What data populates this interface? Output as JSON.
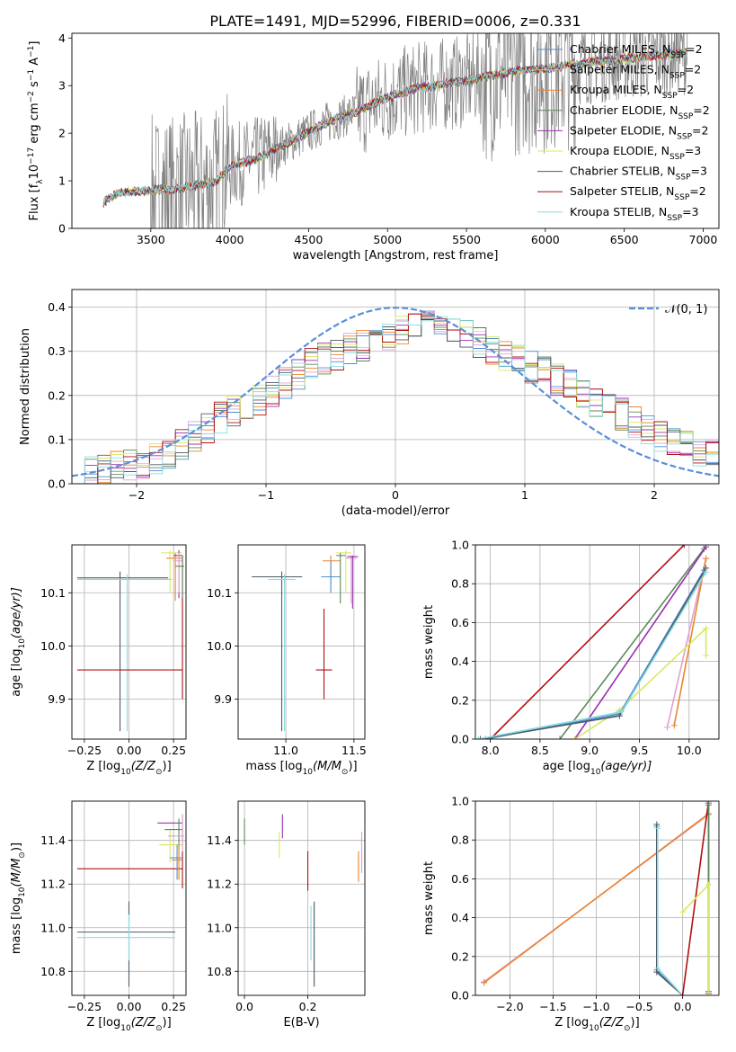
{
  "figure_title": "PLATE=1491, MJD=52996, FIBERID=0006, z=0.331",
  "models": [
    {
      "name": "Chabrier MILES, N",
      "nssp": "=2",
      "color": "#4f8fd8"
    },
    {
      "name": "Salpeter MILES, N",
      "nssp": "=2",
      "color": "#e0a0d0"
    },
    {
      "name": "Kroupa MILES, N",
      "nssp": "=2",
      "color": "#e8862e"
    },
    {
      "name": "Chabrier ELODIE, N",
      "nssp": "=2",
      "color": "#5a8a5a"
    },
    {
      "name": "Salpeter ELODIE, N",
      "nssp": "=2",
      "color": "#9a30b0"
    },
    {
      "name": "Kroupa ELODIE, N",
      "nssp": "=3",
      "color": "#d8e860"
    },
    {
      "name": "Chabrier STELIB, N",
      "nssp": "=3",
      "color": "#505a66"
    },
    {
      "name": "Salpeter STELIB, N",
      "nssp": "=2",
      "color": "#b01010"
    },
    {
      "name": "Kroupa STELIB, N",
      "nssp": "=3",
      "color": "#88dde0"
    }
  ],
  "ssp_subscript": "SSP",
  "data_color": "#808080",
  "chart_data": [
    {
      "id": "spectrum",
      "type": "line",
      "xlabel": "wavelength [Angstrom, rest frame]",
      "ylabel": "Flux [f",
      "ylabel_sub": "λ",
      "ylabel_rest": "10",
      "ylabel_exp": "−17",
      "ylabel_unit": " erg cm",
      "ylabel_exp2": "−2",
      "ylabel_unit2": " s",
      "ylabel_exp3": "−1",
      "ylabel_unit3": " A",
      "ylabel_exp4": "−1",
      "ylabel_end": "]",
      "xlim": [
        3000,
        7100
      ],
      "ylim": [
        0,
        4.1
      ],
      "xticks": [
        3500,
        4000,
        4500,
        5000,
        5500,
        6000,
        6500,
        7000
      ],
      "yticks": [
        0,
        1,
        2,
        3,
        4
      ],
      "continuum": [
        [
          3200,
          0.55
        ],
        [
          3300,
          0.75
        ],
        [
          3500,
          0.8
        ],
        [
          3700,
          0.85
        ],
        [
          3900,
          0.95
        ],
        [
          4000,
          1.3
        ],
        [
          4200,
          1.5
        ],
        [
          4400,
          1.85
        ],
        [
          4600,
          2.2
        ],
        [
          4800,
          2.45
        ],
        [
          5000,
          2.75
        ],
        [
          5200,
          2.95
        ],
        [
          5500,
          3.1
        ],
        [
          5800,
          3.3
        ],
        [
          6000,
          3.35
        ],
        [
          6300,
          3.5
        ],
        [
          6600,
          3.6
        ],
        [
          6900,
          3.7
        ]
      ]
    },
    {
      "id": "residuals",
      "type": "histogram",
      "xlabel": "(data-model)/error",
      "ylabel": "Normed distribution",
      "xlim": [
        -2.5,
        2.5
      ],
      "ylim": [
        0,
        0.44
      ],
      "xticks": [
        -2,
        -1,
        0,
        1,
        2
      ],
      "xticklabels": [
        "−2",
        "−1",
        "0",
        "1",
        "2"
      ],
      "yticks": [
        0.0,
        0.1,
        0.2,
        0.3,
        0.4
      ],
      "yticklabels": [
        "0.0",
        "0.1",
        "0.2",
        "0.3",
        "0.4"
      ],
      "legend": "𝒩(0, 1)",
      "gaussian_color": "#5b8fd8",
      "bin_width": 0.1,
      "envelope": [
        [
          -2.5,
          0.025
        ],
        [
          -2.2,
          0.035
        ],
        [
          -2.0,
          0.045
        ],
        [
          -1.8,
          0.06
        ],
        [
          -1.6,
          0.1
        ],
        [
          -1.4,
          0.14
        ],
        [
          -1.2,
          0.17
        ],
        [
          -1.0,
          0.2
        ],
        [
          -0.8,
          0.24
        ],
        [
          -0.6,
          0.28
        ],
        [
          -0.4,
          0.3
        ],
        [
          -0.2,
          0.32
        ],
        [
          0.0,
          0.34
        ],
        [
          0.2,
          0.355
        ],
        [
          0.4,
          0.36
        ],
        [
          0.6,
          0.33
        ],
        [
          0.8,
          0.3
        ],
        [
          1.0,
          0.27
        ],
        [
          1.2,
          0.245
        ],
        [
          1.4,
          0.215
        ],
        [
          1.6,
          0.175
        ],
        [
          1.8,
          0.15
        ],
        [
          2.0,
          0.11
        ],
        [
          2.2,
          0.09
        ],
        [
          2.4,
          0.065
        ],
        [
          2.5,
          0.06
        ]
      ]
    },
    {
      "id": "age-vs-Z",
      "type": "errorbar",
      "xlabel": "Z [log",
      "xlabel_sub": "10",
      "xlabel_rest": "(Z/Z",
      "xlabel_sub2": "⊙",
      "xlabel_end": ")]",
      "ylabel": "age  [log",
      "ylabel_sub": "10",
      "ylabel_rest": "(age/yr)]",
      "xlim": [
        -0.32,
        0.32
      ],
      "ylim": [
        9.825,
        10.19
      ],
      "xticks": [
        -0.25,
        0.0,
        0.25
      ],
      "xticklabels": [
        "−0.25",
        "0.00",
        "0.25"
      ],
      "yticks": [
        9.9,
        10.0,
        10.1
      ],
      "yticklabels": [
        "9.9",
        "10.0",
        "10.1"
      ],
      "points": [
        {
          "m": 6,
          "x": -0.05,
          "xlo": -0.29,
          "xhi": 0.22,
          "y": 10.128,
          "ylo": 9.84,
          "yhi": 10.14
        },
        {
          "m": 8,
          "x": -0.01,
          "xlo": -0.29,
          "xhi": 0.24,
          "y": 10.125,
          "ylo": 9.84,
          "yhi": 10.135
        },
        {
          "m": 7,
          "x": 0.3,
          "xlo": -0.29,
          "xhi": 0.3,
          "y": 9.955,
          "ylo": 9.9,
          "yhi": 10.17
        },
        {
          "m": 5,
          "x": 0.23,
          "xlo": 0.18,
          "xhi": 0.3,
          "y": 10.175,
          "ylo": 10.1,
          "yhi": 10.18
        },
        {
          "m": 2,
          "x": 0.26,
          "xlo": 0.21,
          "xhi": 0.3,
          "y": 10.165,
          "ylo": 10.085,
          "yhi": 10.175
        },
        {
          "m": 4,
          "x": 0.28,
          "xlo": 0.25,
          "xhi": 0.3,
          "y": 10.17,
          "ylo": 10.09,
          "yhi": 10.18
        },
        {
          "m": 1,
          "x": 0.28,
          "xlo": 0.25,
          "xhi": 0.3,
          "y": 10.16,
          "ylo": 10.1,
          "yhi": 10.175
        },
        {
          "m": 3,
          "x": 0.3,
          "xlo": 0.26,
          "xhi": 0.31,
          "y": 10.15,
          "ylo": 10.09,
          "yhi": 10.17
        }
      ]
    },
    {
      "id": "age-vs-mass",
      "type": "errorbar",
      "xlabel": "mass [log",
      "xlabel_sub": "10",
      "xlabel_rest": "(M/M",
      "xlabel_sub2": "⊙",
      "xlabel_end": ")]",
      "xlim": [
        10.65,
        11.58
      ],
      "ylim": [
        9.825,
        10.19
      ],
      "xticks": [
        11.0,
        11.5
      ],
      "xticklabels": [
        "11.0",
        "11.5"
      ],
      "yticks": [
        9.9,
        10.0,
        10.1
      ],
      "yticklabels": [
        "9.9",
        "10.0",
        "10.1"
      ],
      "points": [
        {
          "m": 6,
          "x": 10.97,
          "xlo": 10.75,
          "xhi": 11.12,
          "y": 10.13,
          "ylo": 9.84,
          "yhi": 10.14
        },
        {
          "m": 8,
          "x": 10.99,
          "xlo": 10.87,
          "xhi": 11.07,
          "y": 10.125,
          "ylo": 9.84,
          "yhi": 10.135
        },
        {
          "m": 7,
          "x": 11.28,
          "xlo": 11.22,
          "xhi": 11.34,
          "y": 9.955,
          "ylo": 9.9,
          "yhi": 10.07
        },
        {
          "m": 2,
          "x": 11.33,
          "xlo": 11.27,
          "xhi": 11.4,
          "y": 10.16,
          "ylo": 10.12,
          "yhi": 10.17
        },
        {
          "m": 0,
          "x": 11.33,
          "xlo": 11.26,
          "xhi": 11.4,
          "y": 10.13,
          "ylo": 10.1,
          "yhi": 10.16
        },
        {
          "m": 5,
          "x": 11.44,
          "xlo": 11.37,
          "xhi": 11.48,
          "y": 10.175,
          "ylo": 10.1,
          "yhi": 10.18
        },
        {
          "m": 3,
          "x": 11.4,
          "xlo": 11.37,
          "xhi": 11.44,
          "y": 10.17,
          "ylo": 10.08,
          "yhi": 10.175
        },
        {
          "m": 1,
          "x": 11.48,
          "xlo": 11.44,
          "xhi": 11.52,
          "y": 10.165,
          "ylo": 10.08,
          "yhi": 10.17
        },
        {
          "m": 4,
          "x": 11.49,
          "xlo": 11.45,
          "xhi": 11.53,
          "y": 10.168,
          "ylo": 10.07,
          "yhi": 10.17
        }
      ]
    },
    {
      "id": "massweight-vs-age",
      "type": "line",
      "xlabel": "age  [log",
      "xlabel_sub": "10",
      "xlabel_rest": "(age/yr)]",
      "ylabel": "mass weight",
      "xlim": [
        7.85,
        10.3
      ],
      "ylim": [
        0,
        1.0
      ],
      "xticks": [
        8.0,
        8.5,
        9.0,
        9.5,
        10.0
      ],
      "xticklabels": [
        "8.0",
        "8.5",
        "9.0",
        "9.5",
        "10.0"
      ],
      "yticks": [
        0.0,
        0.2,
        0.4,
        0.6,
        0.8,
        1.0
      ],
      "yticklabels": [
        "0.0",
        "0.2",
        "0.4",
        "0.6",
        "0.8",
        "1.0"
      ],
      "series": [
        {
          "m": 7,
          "points": [
            [
              8.0,
              0.0
            ],
            [
              9.95,
              1.0
            ]
          ]
        },
        {
          "m": 3,
          "points": [
            [
              8.7,
              0.0
            ],
            [
              10.15,
              0.98
            ]
          ]
        },
        {
          "m": 4,
          "points": [
            [
              8.85,
              0.0
            ],
            [
              10.17,
              0.99
            ]
          ]
        },
        {
          "m": 1,
          "points": [
            [
              9.78,
              0.06
            ],
            [
              10.17,
              0.93
            ]
          ]
        },
        {
          "m": 2,
          "points": [
            [
              9.85,
              0.07
            ],
            [
              10.17,
              0.93
            ]
          ]
        },
        {
          "m": 5,
          "points": [
            [
              8.85,
              0.0
            ],
            [
              9.3,
              0.15
            ],
            [
              10.17,
              0.57
            ],
            [
              10.17,
              0.43
            ]
          ]
        },
        {
          "m": 0,
          "points": [
            [
              7.95,
              0.0
            ],
            [
              9.3,
              0.13
            ],
            [
              10.15,
              0.87
            ]
          ]
        },
        {
          "m": 6,
          "points": [
            [
              7.9,
              0.0
            ],
            [
              9.3,
              0.12
            ],
            [
              10.17,
              0.88
            ]
          ]
        },
        {
          "m": 8,
          "points": [
            [
              7.88,
              0.0
            ],
            [
              9.32,
              0.14
            ],
            [
              10.17,
              0.86
            ]
          ]
        }
      ]
    },
    {
      "id": "mass-vs-Z",
      "type": "errorbar",
      "xlabel": "Z [log",
      "xlabel_sub": "10",
      "xlabel_rest": "(Z/Z",
      "xlabel_sub2": "⊙",
      "xlabel_end": ")]",
      "ylabel": "mass [log",
      "ylabel_sub": "10",
      "ylabel_rest": "(M/M",
      "ylabel_sub2": "⊙",
      "ylabel_end": ")]",
      "xlim": [
        -0.32,
        0.32
      ],
      "ylim": [
        10.69,
        11.58
      ],
      "xticks": [
        -0.25,
        0.0,
        0.25
      ],
      "xticklabels": [
        "−0.25",
        "0.00",
        "0.25"
      ],
      "yticks": [
        10.8,
        11.0,
        11.2,
        11.4
      ],
      "yticklabels": [
        "10.8",
        "11.0",
        "11.2",
        "11.4"
      ],
      "points": [
        {
          "m": 6,
          "x": 0.0,
          "xlo": -0.29,
          "xhi": 0.26,
          "y": 10.98,
          "ylo": 10.73,
          "yhi": 11.12
        },
        {
          "m": 8,
          "x": 0.0,
          "xlo": -0.29,
          "xhi": 0.26,
          "y": 10.955,
          "ylo": 10.85,
          "yhi": 11.06
        },
        {
          "m": 7,
          "x": 0.3,
          "xlo": -0.29,
          "xhi": 0.3,
          "y": 11.27,
          "ylo": 11.18,
          "yhi": 11.35
        },
        {
          "m": 5,
          "x": 0.23,
          "xlo": 0.17,
          "xhi": 0.3,
          "y": 11.38,
          "ylo": 11.3,
          "yhi": 11.45
        },
        {
          "m": 4,
          "x": 0.3,
          "xlo": 0.16,
          "xhi": 0.3,
          "y": 11.48,
          "ylo": 11.38,
          "yhi": 11.52
        },
        {
          "m": 3,
          "x": 0.28,
          "xlo": 0.2,
          "xhi": 0.3,
          "y": 11.45,
          "ylo": 11.35,
          "yhi": 11.5
        },
        {
          "m": 1,
          "x": 0.3,
          "xlo": 0.22,
          "xhi": 0.31,
          "y": 11.42,
          "ylo": 11.35,
          "yhi": 11.52
        },
        {
          "m": 0,
          "x": 0.27,
          "xlo": 0.23,
          "xhi": 0.3,
          "y": 11.32,
          "ylo": 11.22,
          "yhi": 11.38
        },
        {
          "m": 2,
          "x": 0.28,
          "xlo": 0.24,
          "xhi": 0.3,
          "y": 11.31,
          "ylo": 11.22,
          "yhi": 11.38
        }
      ]
    },
    {
      "id": "mass-vs-EBV",
      "type": "errorbar",
      "xlabel": "E(B-V)",
      "xlim": [
        -0.02,
        0.38
      ],
      "ylim": [
        10.69,
        11.58
      ],
      "xticks": [
        0.0,
        0.2
      ],
      "xticklabels": [
        "0.0",
        "0.2"
      ],
      "yticks": [
        10.8,
        11.0,
        11.2,
        11.4
      ],
      "yticklabels": [
        "10.8",
        "11.0",
        "11.2",
        "11.4"
      ],
      "points": [
        {
          "m": 3,
          "x": 0.0,
          "y": 11.42,
          "ylo": 11.38,
          "yhi": 11.5
        },
        {
          "m": 5,
          "x": 0.11,
          "y": 11.36,
          "ylo": 11.32,
          "yhi": 11.44
        },
        {
          "m": 4,
          "x": 0.12,
          "y": 11.46,
          "ylo": 11.41,
          "yhi": 11.52
        },
        {
          "m": 7,
          "x": 0.2,
          "y": 11.27,
          "ylo": 11.17,
          "yhi": 11.35
        },
        {
          "m": 8,
          "x": 0.21,
          "y": 10.95,
          "ylo": 10.85,
          "yhi": 11.1
        },
        {
          "m": 6,
          "x": 0.22,
          "y": 10.98,
          "ylo": 10.73,
          "yhi": 11.12
        },
        {
          "m": 5,
          "x": 0.36,
          "y": 11.3,
          "ylo": 11.22,
          "yhi": 11.35
        },
        {
          "m": 2,
          "x": 0.36,
          "y": 11.3,
          "ylo": 11.21,
          "yhi": 11.35
        },
        {
          "m": 1,
          "x": 0.37,
          "y": 11.35,
          "ylo": 11.25,
          "yhi": 11.44
        }
      ]
    },
    {
      "id": "massweight-vs-Z",
      "type": "line",
      "xlabel": "Z [log",
      "xlabel_sub": "10",
      "xlabel_rest": "(Z/Z",
      "xlabel_sub2": "⊙",
      "xlabel_end": ")]",
      "ylabel": "mass weight",
      "xlim": [
        -2.4,
        0.42
      ],
      "ylim": [
        0,
        1.0
      ],
      "xticks": [
        -2.0,
        -1.5,
        -1.0,
        -0.5,
        0.0
      ],
      "xticklabels": [
        "−2.0",
        "−1.5",
        "−1.0",
        "−0.5",
        "0.0"
      ],
      "yticks": [
        0.0,
        0.2,
        0.4,
        0.6,
        0.8,
        1.0
      ],
      "yticklabels": [
        "0.0",
        "0.2",
        "0.4",
        "0.6",
        "0.8",
        "1.0"
      ],
      "series": [
        {
          "m": 1,
          "points": [
            [
              -2.3,
              0.07
            ],
            [
              0.3,
              0.93
            ]
          ]
        },
        {
          "m": 2,
          "points": [
            [
              -2.3,
              0.065
            ],
            [
              0.3,
              0.935
            ]
          ]
        },
        {
          "m": 0,
          "points": [
            [
              -0.3,
              0.87
            ],
            [
              -0.3,
              0.13
            ],
            [
              0.0,
              0.0
            ]
          ]
        },
        {
          "m": 6,
          "points": [
            [
              -0.3,
              0.88
            ],
            [
              -0.3,
              0.12
            ],
            [
              0.0,
              0.0
            ]
          ]
        },
        {
          "m": 8,
          "points": [
            [
              -0.29,
              0.86
            ],
            [
              -0.29,
              0.14
            ],
            [
              0.0,
              0.0
            ]
          ]
        },
        {
          "m": 7,
          "points": [
            [
              0.0,
              0.0
            ],
            [
              0.3,
              1.0
            ]
          ]
        },
        {
          "m": 4,
          "points": [
            [
              0.3,
              0.99
            ],
            [
              0.3,
              0.01
            ]
          ]
        },
        {
          "m": 3,
          "points": [
            [
              0.3,
              0.98
            ],
            [
              0.3,
              0.02
            ]
          ]
        },
        {
          "m": 5,
          "points": [
            [
              0.0,
              0.43
            ],
            [
              0.3,
              0.57
            ],
            [
              0.3,
              0.0
            ]
          ]
        }
      ]
    }
  ]
}
